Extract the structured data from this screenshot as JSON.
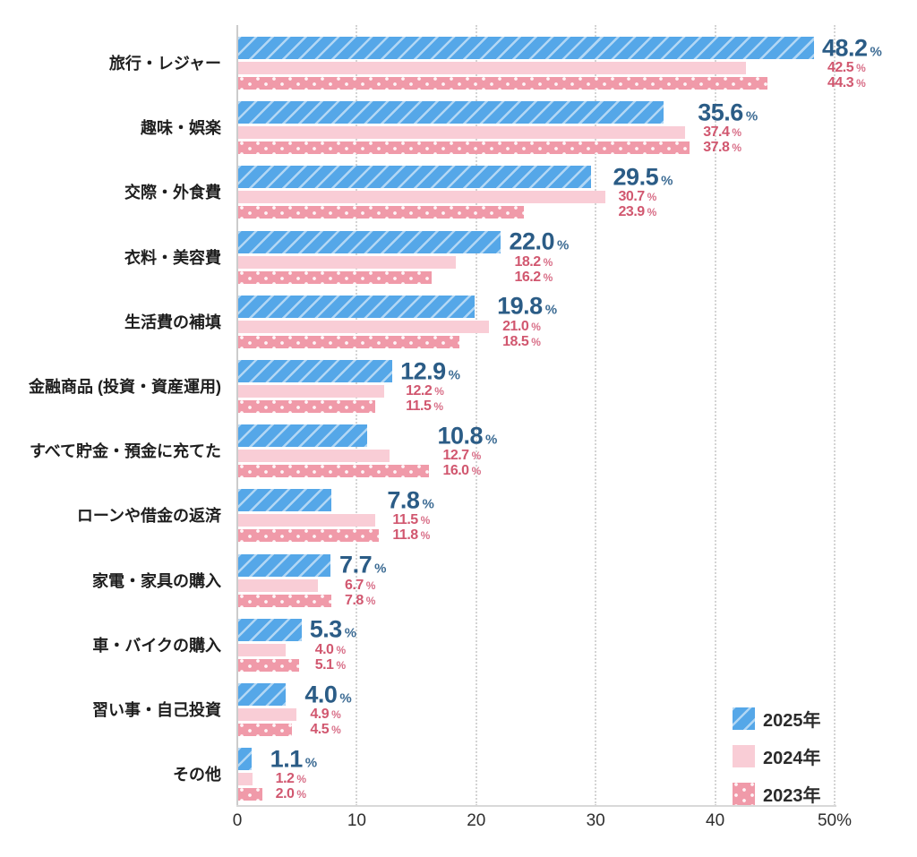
{
  "chart_data": {
    "type": "bar",
    "orientation": "horizontal",
    "title": "",
    "unit": "%",
    "xlim": [
      0,
      50
    ],
    "x_ticks": [
      "0",
      "10",
      "20",
      "30",
      "40",
      "50%"
    ],
    "grid": "vertical-dashed",
    "legend_position": "bottom-right",
    "categories": [
      "旅行・レジャー",
      "趣味・娯楽",
      "交際・外食費",
      "衣料・美容費",
      "生活費の補填",
      "金融商品 (投資・資産運用)",
      "すべて貯金・預金に充てた",
      "ローンや借金の返済",
      "家電・家具の購入",
      "車・バイクの購入",
      "習い事・自己投資",
      "その他"
    ],
    "series": [
      {
        "name": "2025年",
        "pattern": "diagonal-stripes",
        "color": "#55a7e8",
        "label_color": "#2b5c86",
        "values": [
          48.2,
          35.6,
          29.5,
          22.0,
          19.8,
          12.9,
          10.8,
          7.8,
          7.7,
          5.3,
          4.0,
          1.1
        ]
      },
      {
        "name": "2024年",
        "pattern": "solid",
        "color": "#f9cdd6",
        "label_color": "#d1576f",
        "values": [
          42.5,
          37.4,
          30.7,
          18.2,
          21.0,
          12.2,
          12.7,
          11.5,
          6.7,
          4.0,
          4.9,
          1.2
        ]
      },
      {
        "name": "2023年",
        "pattern": "dots",
        "color": "#f09aa9",
        "label_color": "#d1576f",
        "values": [
          44.3,
          37.8,
          23.9,
          16.2,
          18.5,
          11.5,
          16.0,
          11.8,
          7.8,
          5.1,
          4.5,
          2.0
        ]
      }
    ]
  }
}
